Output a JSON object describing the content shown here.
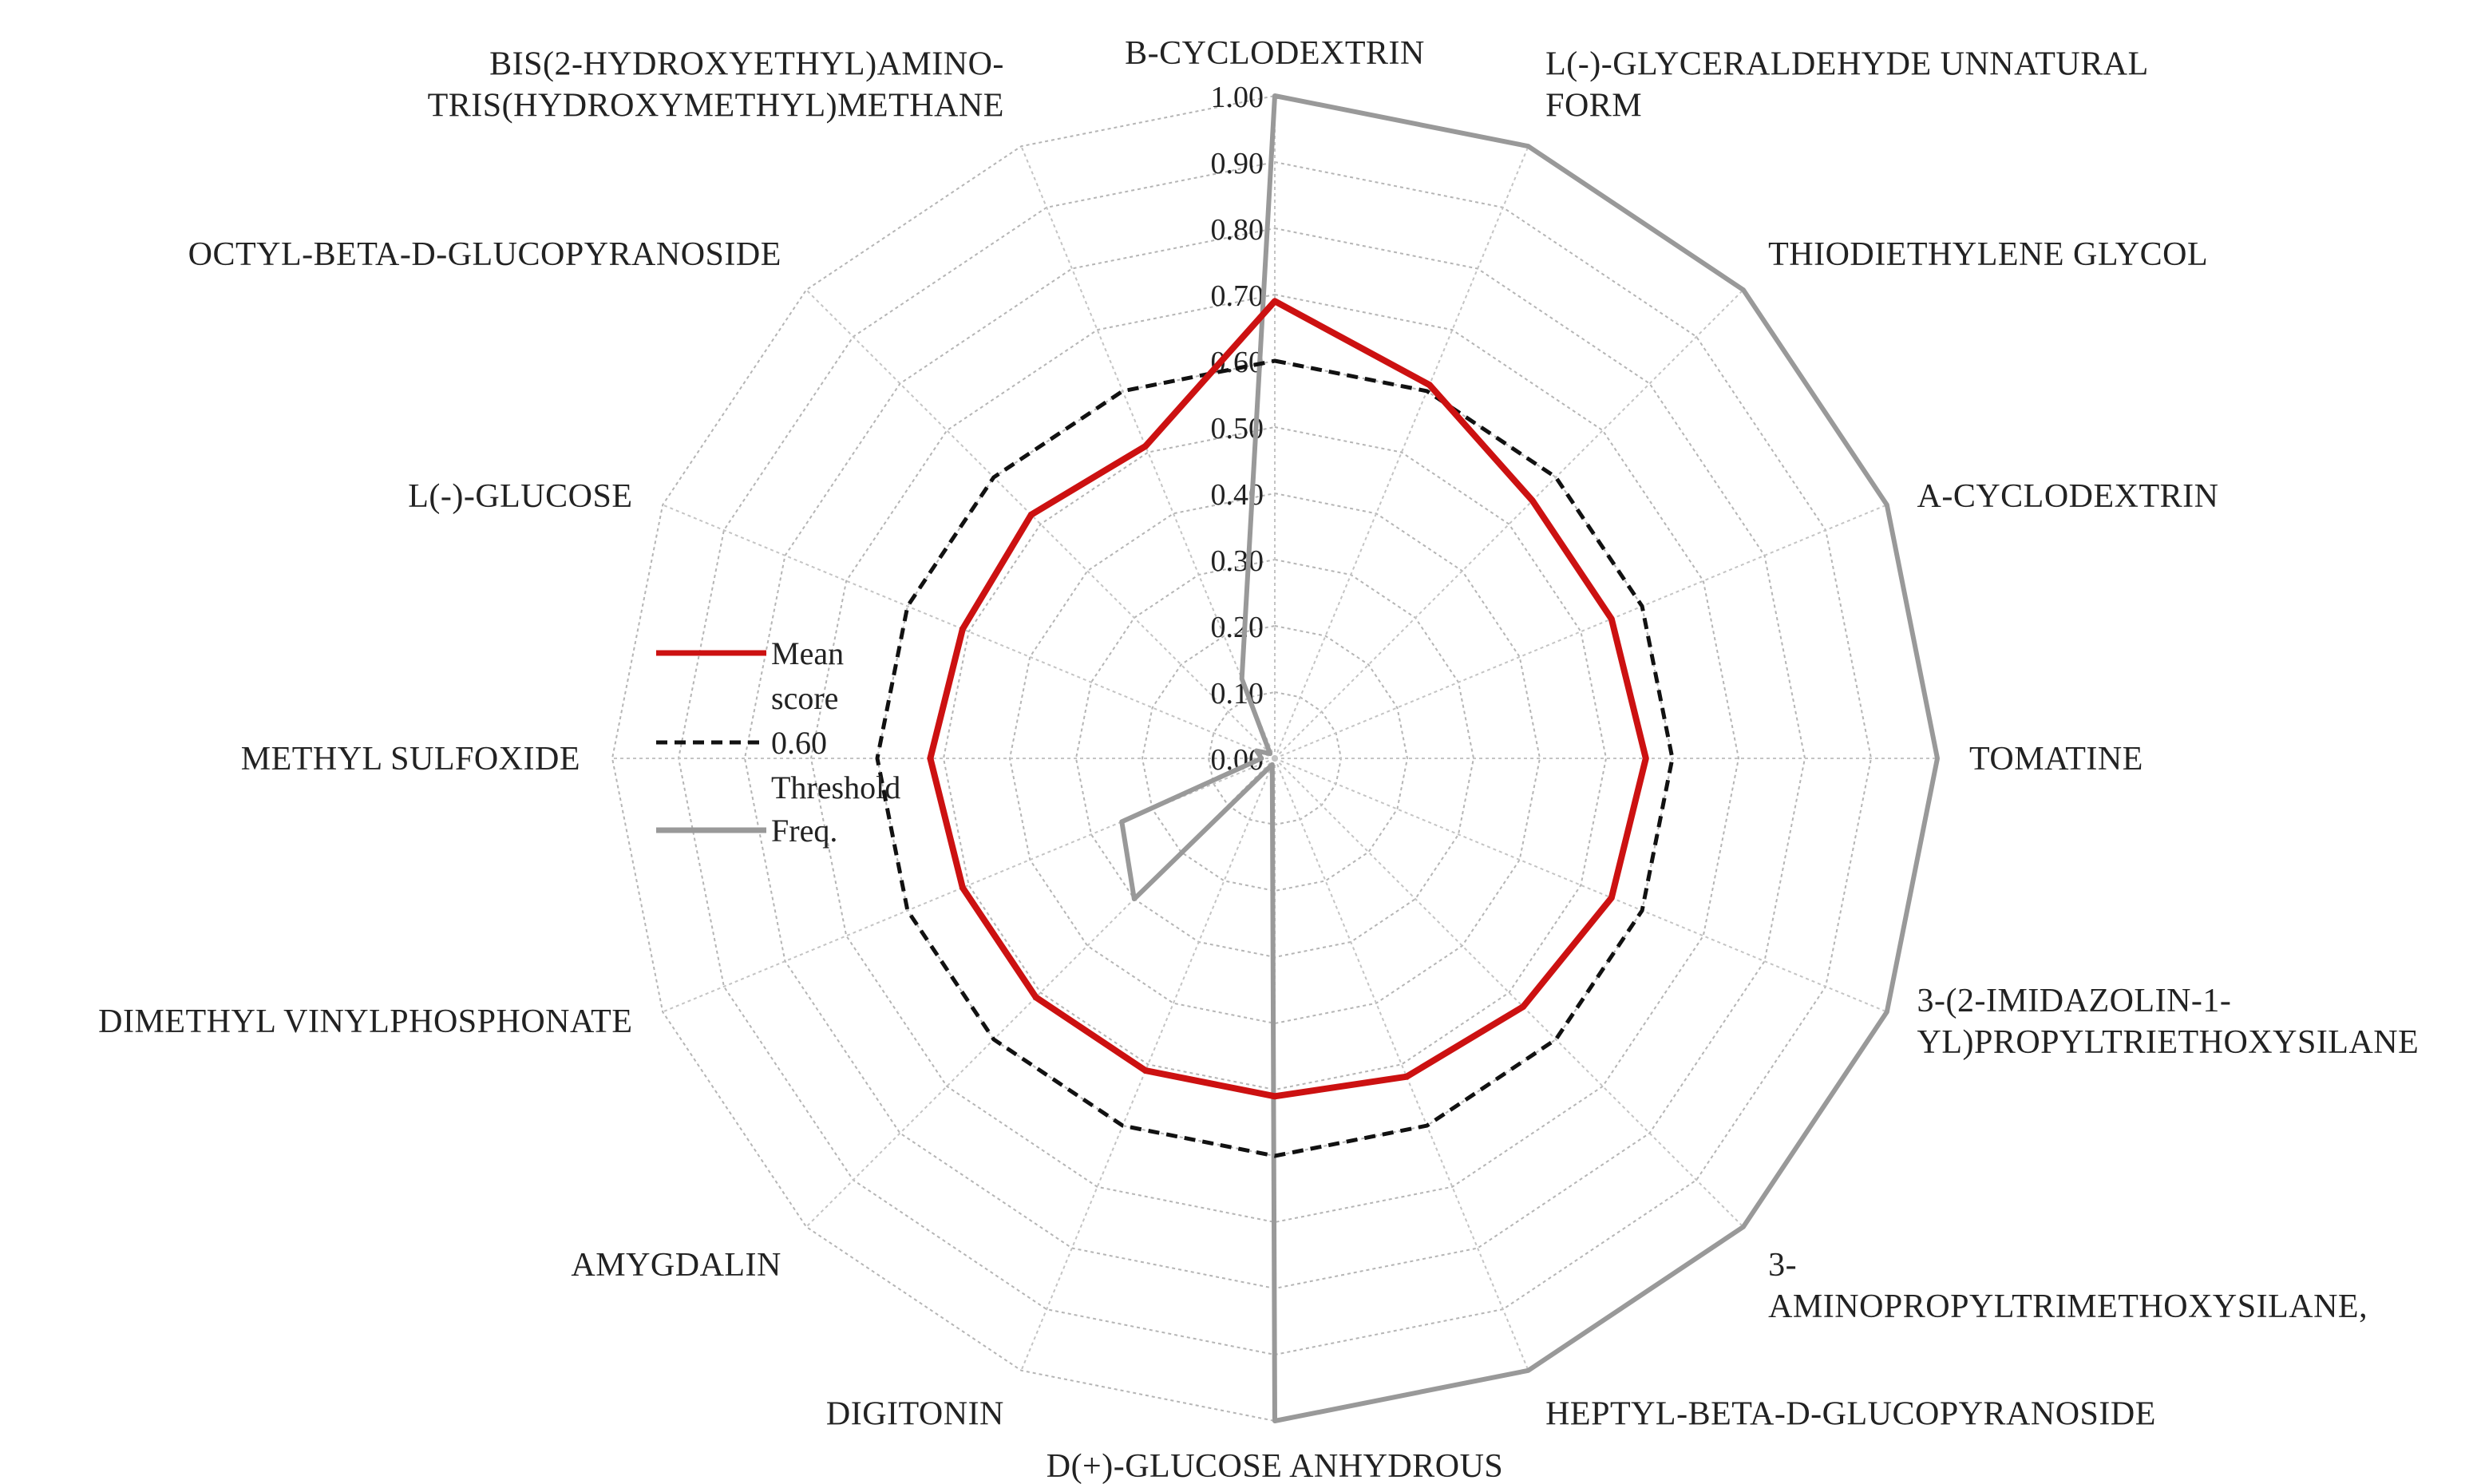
{
  "chart_data": {
    "type": "radar",
    "categories": [
      [
        "Β-CYCLODEXTRIN"
      ],
      [
        "L(-)-GLYCERALDEHYDE UNNATURAL",
        "FORM"
      ],
      [
        "THIODIETHYLENE GLYCOL"
      ],
      [
        "Α-CYCLODEXTRIN"
      ],
      [
        "TOMATINE"
      ],
      [
        "3-(2-IMIDAZOLIN-1-",
        "YL)PROPYLTRIETHOXYSILANE"
      ],
      [
        "3-",
        "AMINOPROPYLTRIMETHOXYSILANE,"
      ],
      [
        "HEPTYL-BETA-D-GLUCOPYRANOSIDE"
      ],
      [
        "D(+)-GLUCOSE ANHYDROUS"
      ],
      [
        "DIGITONIN"
      ],
      [
        "AMYGDALIN"
      ],
      [
        "DIMETHYL VINYLPHOSPHONATE"
      ],
      [
        "METHYL SULFOXIDE"
      ],
      [
        "L(-)-GLUCOSE"
      ],
      [
        "OCTYL-BETA-D-GLUCOPYRANOSIDE"
      ],
      [
        "BIS(2-HYDROXYETHYL)AMINO-",
        "TRIS(HYDROXYMETHYL)METHANE"
      ]
    ],
    "radial_ticks": [
      "0.00",
      "0.10",
      "0.20",
      "0.30",
      "0.40",
      "0.50",
      "0.60",
      "0.70",
      "0.80",
      "0.90",
      "1.00"
    ],
    "rlim": [
      0,
      1
    ],
    "series": [
      {
        "name": [
          "Mean",
          "score"
        ],
        "color": "#cc1111",
        "style": "solid",
        "values": [
          0.69,
          0.61,
          0.55,
          0.55,
          0.56,
          0.55,
          0.53,
          0.52,
          0.51,
          0.51,
          0.51,
          0.51,
          0.52,
          0.51,
          0.52,
          0.51
        ]
      },
      {
        "name": [
          "0.60",
          "Threshold"
        ],
        "color": "#111111",
        "style": "dashed",
        "values": [
          0.6,
          0.6,
          0.6,
          0.6,
          0.6,
          0.6,
          0.6,
          0.6,
          0.6,
          0.6,
          0.6,
          0.6,
          0.6,
          0.6,
          0.6,
          0.6
        ]
      },
      {
        "name": [
          "Freq."
        ],
        "color": "#999999",
        "style": "solid",
        "values": [
          1.0,
          1.0,
          1.0,
          1.0,
          1.0,
          1.0,
          1.0,
          1.0,
          1.0,
          0.01,
          0.3,
          0.25,
          0.02,
          0.03,
          0.01,
          0.13
        ]
      }
    ],
    "legend": "left",
    "grid": true
  }
}
